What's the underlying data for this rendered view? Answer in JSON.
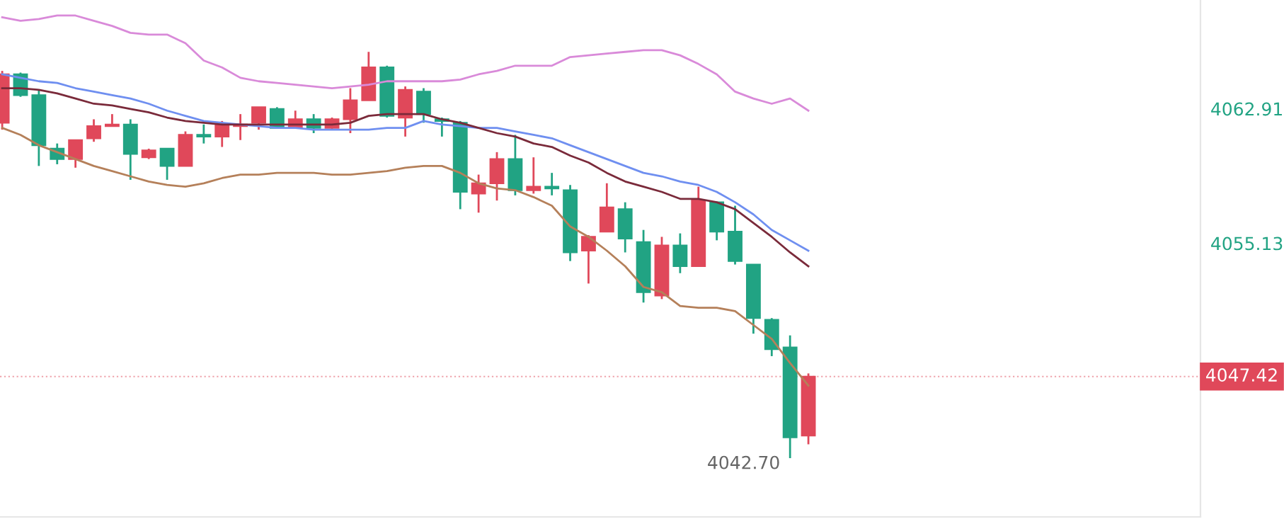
{
  "chart_data": {
    "type": "candlestick",
    "categories": [
      null,
      null,
      null,
      null,
      null,
      null,
      null,
      null,
      null,
      null,
      null,
      null,
      null,
      null,
      null,
      null,
      null,
      null,
      null,
      null,
      null,
      null,
      null,
      null,
      null,
      null,
      null,
      null,
      null,
      null,
      null,
      null,
      null,
      null,
      null,
      null,
      null,
      null,
      null,
      null,
      null,
      null,
      null,
      null,
      null
    ],
    "ohlc": [
      [
        4062.1,
        4065.1,
        4061.7,
        4064.9
      ],
      [
        4064.9,
        4065.0,
        4063.6,
        4063.7
      ],
      [
        4063.7,
        4064.0,
        4059.6,
        4060.8
      ],
      [
        4060.6,
        4060.9,
        4059.7,
        4060.0
      ],
      [
        4060.0,
        4061.1,
        4059.5,
        4061.1
      ],
      [
        4061.2,
        4062.3,
        4061.0,
        4061.9
      ],
      [
        4061.9,
        4062.6,
        4061.9,
        4062.0
      ],
      [
        4062.0,
        4062.3,
        4058.8,
        4060.3
      ],
      [
        4060.1,
        4060.6,
        4060.0,
        4060.5
      ],
      [
        4060.6,
        4060.6,
        4058.8,
        4059.6
      ],
      [
        4059.6,
        4061.6,
        4059.6,
        4061.4
      ],
      [
        4061.4,
        4062.0,
        4060.9,
        4061.3
      ],
      [
        4061.3,
        4062.2,
        4060.7,
        4062.0
      ],
      [
        4061.9,
        4062.6,
        4061.1,
        4062.0
      ],
      [
        4062.1,
        4063.0,
        4061.7,
        4063.0
      ],
      [
        4062.9,
        4063.0,
        4061.8,
        4061.8
      ],
      [
        4061.8,
        4062.8,
        4061.8,
        4062.3
      ],
      [
        4062.3,
        4062.6,
        4061.5,
        4061.8
      ],
      [
        4061.8,
        4062.4,
        4061.7,
        4062.3
      ],
      [
        4062.3,
        4064.1,
        4061.5,
        4063.4
      ],
      [
        4063.4,
        4066.2,
        4063.4,
        4065.3
      ],
      [
        4065.3,
        4065.4,
        4062.4,
        4062.5
      ],
      [
        4062.4,
        4064.2,
        4061.3,
        4064.0
      ],
      [
        4063.9,
        4064.1,
        4062.1,
        4062.6
      ],
      [
        4062.3,
        4062.4,
        4061.3,
        4062.2
      ],
      [
        4062.1,
        4062.2,
        4057.1,
        4058.1
      ],
      [
        4058.0,
        4059.1,
        4056.9,
        4058.6
      ],
      [
        4058.6,
        4060.4,
        4057.6,
        4060.0
      ],
      [
        4060.0,
        4061.4,
        4057.9,
        4058.2
      ],
      [
        4058.2,
        4060.1,
        4058.0,
        4058.4
      ],
      [
        4058.4,
        4059.2,
        4057.9,
        4058.3
      ],
      [
        4058.2,
        4058.5,
        4054.1,
        4054.6
      ],
      [
        4054.7,
        4055.6,
        4052.8,
        4055.5
      ],
      [
        4055.8,
        4058.6,
        4055.8,
        4057.2
      ],
      [
        4057.1,
        4057.5,
        4054.6,
        4055.4
      ],
      [
        4055.2,
        4055.9,
        4051.7,
        4052.3
      ],
      [
        4052.1,
        4055.5,
        4051.9,
        4055.0
      ],
      [
        4055.0,
        4055.7,
        4053.4,
        4053.8
      ],
      [
        4053.8,
        4058.4,
        4053.8,
        4057.6
      ],
      [
        4057.5,
        4057.5,
        4055.3,
        4055.8
      ],
      [
        4055.8,
        4057.3,
        4053.9,
        4054.1
      ],
      [
        4053.9,
        4053.9,
        4049.9,
        4050.8
      ],
      [
        4050.7,
        4050.8,
        4048.6,
        4049.0
      ],
      [
        4049.1,
        4049.8,
        4042.7,
        4043.9
      ],
      [
        4044.0,
        4047.6,
        4043.5,
        4047.42
      ]
    ],
    "colors": [
      "#e0485a",
      "#21a383",
      "#21a383",
      "#21a383",
      "#e0485a",
      "#e0485a",
      "#e0485a",
      "#21a383",
      "#e0485a",
      "#21a383",
      "#e0485a",
      "#21a383",
      "#e0485a",
      "#e0485a",
      "#e0485a",
      "#21a383",
      "#e0485a",
      "#21a383",
      "#e0485a",
      "#e0485a",
      "#e0485a",
      "#21a383",
      "#e0485a",
      "#21a383",
      "#21a383",
      "#21a383",
      "#e0485a",
      "#e0485a",
      "#21a383",
      "#e0485a",
      "#21a383",
      "#21a383",
      "#e0485a",
      "#e0485a",
      "#21a383",
      "#21a383",
      "#e0485a",
      "#21a383",
      "#e0485a",
      "#21a383",
      "#21a383",
      "#21a383",
      "#21a383",
      "#21a383",
      "#e0485a"
    ],
    "series": [
      {
        "type": "line",
        "color": "#d98ad9",
        "values": [
          4068.2,
          4068.0,
          4068.1,
          4068.3,
          4068.3,
          4068.0,
          4067.7,
          4067.3,
          4067.2,
          4067.2,
          4066.7,
          4065.7,
          4065.3,
          4064.7,
          4064.5,
          4064.4,
          4064.3,
          4064.2,
          4064.1,
          4064.2,
          4064.3,
          4064.5,
          4064.5,
          4064.5,
          4064.5,
          4064.6,
          4064.9,
          4065.1,
          4065.4,
          4065.4,
          4065.4,
          4065.9,
          4066.0,
          4066.1,
          4066.2,
          4066.3,
          4066.3,
          4066.0,
          4065.5,
          4064.9,
          4063.9,
          4063.5,
          4063.2,
          4063.5,
          4062.8
        ]
      },
      {
        "type": "line",
        "color": "#6f8ff0",
        "values": [
          4064.9,
          4064.7,
          4064.5,
          4064.4,
          4064.1,
          4063.9,
          4063.7,
          4063.5,
          4063.2,
          4062.8,
          4062.5,
          4062.2,
          4062.1,
          4062.0,
          4061.9,
          4061.8,
          4061.8,
          4061.7,
          4061.7,
          4061.7,
          4061.7,
          4061.8,
          4061.8,
          4062.2,
          4062.0,
          4061.9,
          4061.8,
          4061.8,
          4061.6,
          4061.4,
          4061.2,
          4060.8,
          4060.4,
          4060.0,
          4059.6,
          4059.2,
          4059.0,
          4058.7,
          4058.5,
          4058.1,
          4057.5,
          4056.8,
          4055.9,
          4055.3,
          4054.7
        ]
      },
      {
        "type": "line",
        "color": "#7a2a3a",
        "values": [
          4064.1,
          4064.1,
          4064.0,
          4063.8,
          4063.5,
          4063.2,
          4063.1,
          4062.9,
          4062.7,
          4062.4,
          4062.2,
          4062.1,
          4062.0,
          4062.0,
          4062.0,
          4062.0,
          4062.0,
          4062.0,
          4062.0,
          4062.1,
          4062.5,
          4062.6,
          4062.6,
          4062.6,
          4062.3,
          4062.1,
          4061.8,
          4061.5,
          4061.3,
          4060.9,
          4060.7,
          4060.2,
          4059.8,
          4059.2,
          4058.7,
          4058.4,
          4058.1,
          4057.7,
          4057.7,
          4057.5,
          4057.1,
          4056.3,
          4055.5,
          4054.6,
          4053.8
        ]
      },
      {
        "type": "line",
        "color": "#b5805a",
        "values": [
          4061.8,
          4061.4,
          4060.8,
          4060.4,
          4060.0,
          4059.6,
          4059.3,
          4059.0,
          4058.7,
          4058.5,
          4058.4,
          4058.6,
          4058.9,
          4059.1,
          4059.1,
          4059.2,
          4059.2,
          4059.2,
          4059.1,
          4059.1,
          4059.2,
          4059.3,
          4059.5,
          4059.6,
          4059.6,
          4059.2,
          4058.6,
          4058.3,
          4058.2,
          4057.8,
          4057.3,
          4056.1,
          4055.5,
          4054.7,
          4053.8,
          4052.6,
          4052.3,
          4051.5,
          4051.4,
          4051.4,
          4051.2,
          4050.4,
          4049.6,
          4048.2,
          4046.9
        ]
      }
    ],
    "ylim": [
      4039.3,
      4069.2
    ],
    "yticks": [
      4062.91,
      4055.13
    ],
    "tick_labels": "y",
    "ref_lines": [
      {
        "axis": "y",
        "value": 4047.42,
        "label": "4047.42",
        "color": "#e0485a",
        "line_style": "dotted"
      }
    ],
    "annotations": [
      "4042.70"
    ],
    "grid": false,
    "legend": false
  }
}
